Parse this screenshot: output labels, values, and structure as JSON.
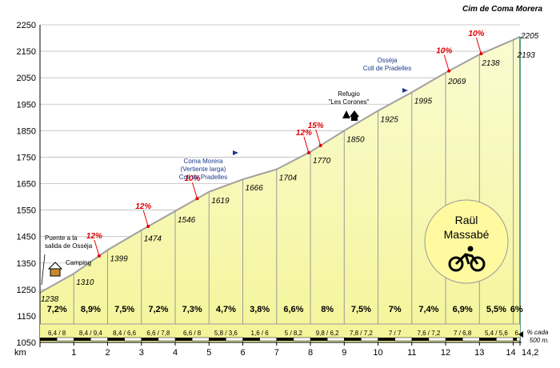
{
  "chart_data": {
    "type": "area",
    "title": "Cim de Coma Morera",
    "xlabel": "km",
    "xlim": [
      0,
      14.2
    ],
    "ylim": [
      1050,
      2250
    ],
    "grid": true,
    "x_ticks": [
      "1",
      "2",
      "3",
      "4",
      "5",
      "6",
      "7",
      "8",
      "9",
      "10",
      "11",
      "12",
      "13",
      "14",
      "14,2"
    ],
    "y_ticks": [
      "1050",
      "1150",
      "1250",
      "1350",
      "1450",
      "1550",
      "1650",
      "1750",
      "1850",
      "1950",
      "2050",
      "2150",
      "2250"
    ],
    "x": [
      0,
      1,
      2,
      3,
      4,
      5,
      6,
      7,
      8,
      9,
      10,
      11,
      12,
      13,
      14,
      14.2
    ],
    "elevation": [
      1238,
      1310,
      1399,
      1474,
      1546,
      1619,
      1666,
      1704,
      1770,
      1850,
      1925,
      1995,
      2069,
      2138,
      2193,
      2205
    ],
    "point_labels": [
      "1238",
      "1310",
      "1399",
      "1474",
      "1546",
      "1619",
      "1666",
      "1704",
      "1770",
      "1850",
      "1925",
      "1995",
      "2069",
      "2138",
      "2193",
      "2205"
    ],
    "segment_gradients": [
      "7,2%",
      "8,9%",
      "7,5%",
      "7,2%",
      "7,3%",
      "4,7%",
      "3,8%",
      "6,6%",
      "8%",
      "7,5%",
      "7%",
      "7,4%",
      "6,9%",
      "5,5%",
      "6%"
    ],
    "segment_half_gradients": [
      "6,4 / 8",
      "8,4 / 9,4",
      "8,4 / 6,6",
      "6,6 / 7,8",
      "6,6 / 8",
      "5,8 / 3,6",
      "1,6 / 6",
      "5 / 8,2",
      "9,8 / 6,2",
      "7,8 / 7,2",
      "7 / 7",
      "7,6 / 7,2",
      "7 / 6,8",
      "5,4 / 5,6",
      "6"
    ],
    "max_gradients": [
      {
        "label": "12%",
        "x": 1.75
      },
      {
        "label": "12%",
        "x": 3.2
      },
      {
        "label": "10%",
        "x": 4.65
      },
      {
        "label": "12%",
        "x": 7.95
      },
      {
        "label": "15%",
        "x": 8.3
      },
      {
        "label": "10%",
        "x": 12.1
      },
      {
        "label": "10%",
        "x": 13.05
      }
    ],
    "annotations": [
      {
        "lines": [
          "Puente a la",
          "salida de Osséja"
        ],
        "color": "#000000"
      },
      {
        "lines": [
          "Camping"
        ],
        "color": "#000000"
      },
      {
        "lines": [
          "Coma Morera",
          "(Vertiente larga)",
          "Coll de Pradelles"
        ],
        "color": "#1a3a8a"
      },
      {
        "lines": [
          "Refugio",
          "\"Les Corones\""
        ],
        "color": "#000000"
      },
      {
        "lines": [
          "Osséja",
          "Coll de Pradelles"
        ],
        "color": "#1a3a8a"
      }
    ],
    "badge": [
      "Raül",
      "Massabé"
    ],
    "footnote": [
      "% cada",
      "500 m."
    ],
    "colors": {
      "fill": "#f4f59a",
      "fill_light": "#fbfbd2",
      "profile": "#a0a0a0",
      "max_gradient": "#e00000",
      "accent_blue": "#1a3a8a",
      "badge": "#fffaa0"
    }
  }
}
